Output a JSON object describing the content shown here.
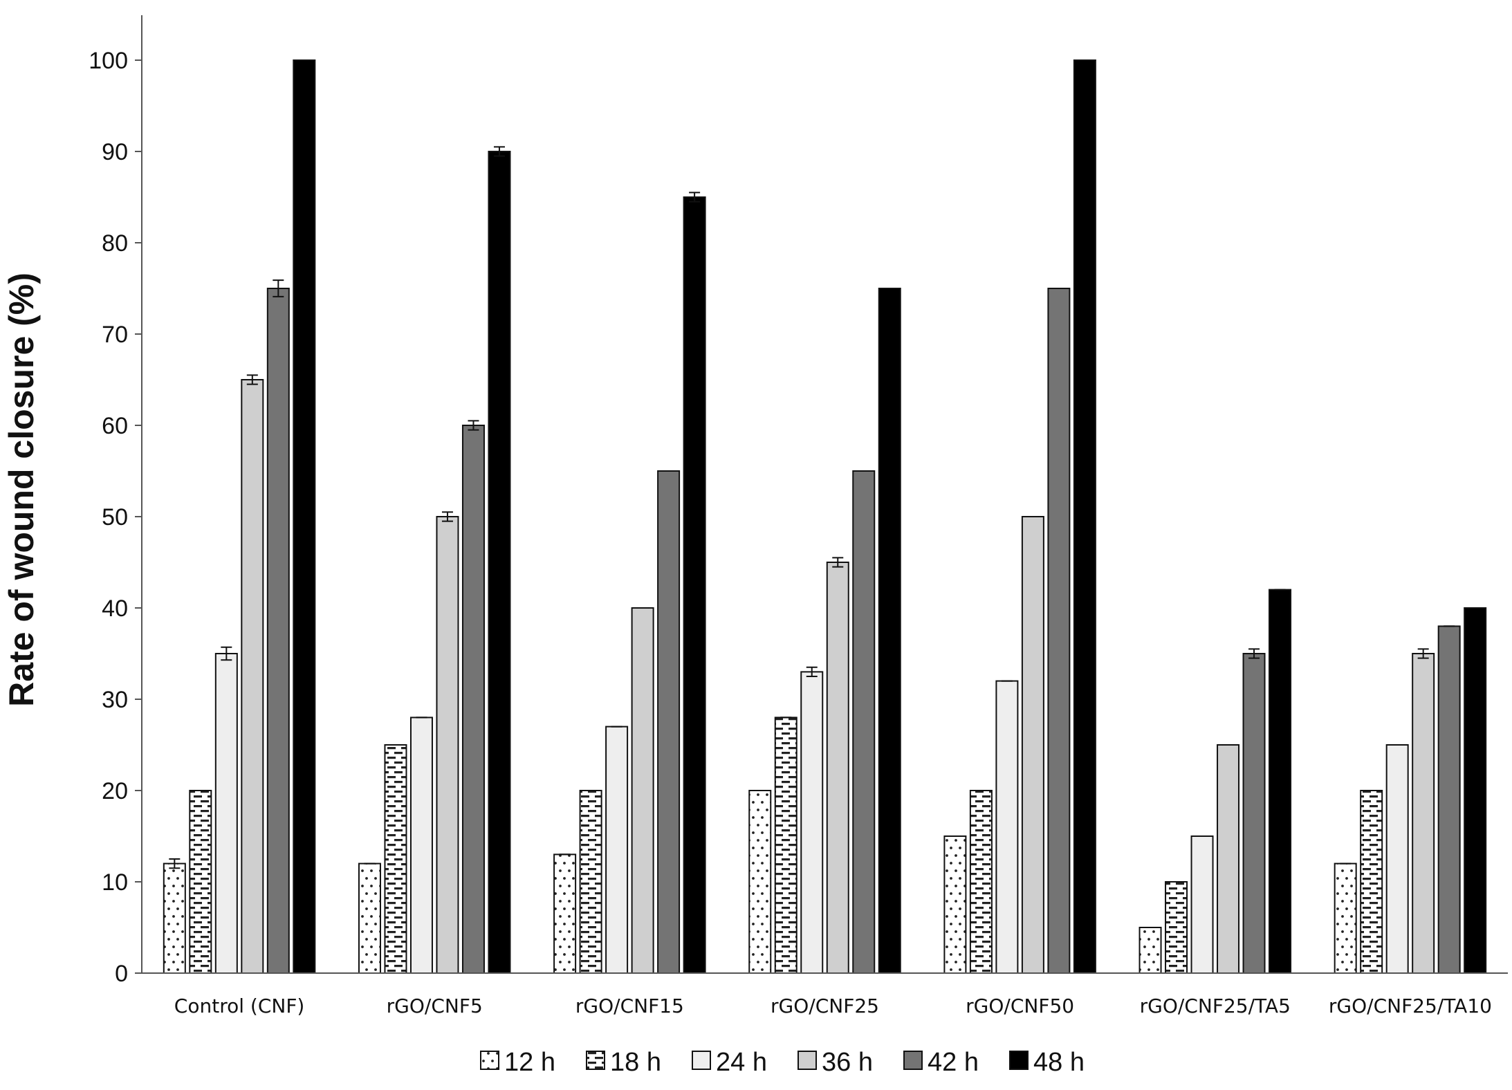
{
  "chart_data": {
    "type": "bar",
    "title": "",
    "xlabel": "",
    "ylabel": "Rate of wound closure (%)",
    "ylim": [
      0,
      100
    ],
    "yticks": [
      0,
      10,
      20,
      30,
      40,
      50,
      60,
      70,
      80,
      90,
      100
    ],
    "grid": false,
    "legend_position": "bottom",
    "categories": [
      "Control (CNF)",
      "rGO/CNF5",
      "rGO/CNF15",
      "rGO/CNF25",
      "rGO/CNF50",
      "rGO/CNF25/TA5",
      "rGO/CNF25/TA10"
    ],
    "series": [
      {
        "name": "12 h",
        "pattern": "dots",
        "color": "#ffffff",
        "values": [
          12,
          12,
          13,
          20,
          15,
          5,
          12
        ],
        "errors": [
          0.5,
          0,
          0,
          0,
          0,
          0,
          0
        ]
      },
      {
        "name": "18 h",
        "pattern": "dashes",
        "color": "#ffffff",
        "values": [
          20,
          25,
          20,
          28,
          20,
          10,
          20
        ],
        "errors": [
          0,
          0,
          0,
          0,
          0,
          0,
          0
        ]
      },
      {
        "name": "24 h",
        "pattern": "solid",
        "color": "#eeeeee",
        "values": [
          35,
          28,
          27,
          33,
          32,
          15,
          25
        ],
        "errors": [
          0.7,
          0,
          0,
          0.5,
          0,
          0,
          0
        ]
      },
      {
        "name": "36 h",
        "pattern": "solid",
        "color": "#cfcfcf",
        "values": [
          65,
          50,
          40,
          45,
          50,
          25,
          35
        ],
        "errors": [
          0.5,
          0.5,
          0,
          0.5,
          0,
          0,
          0.5
        ]
      },
      {
        "name": "42 h",
        "pattern": "solid",
        "color": "#747474",
        "values": [
          75,
          60,
          55,
          55,
          75,
          35,
          38
        ],
        "errors": [
          0.9,
          0.5,
          0,
          0,
          0,
          0.5,
          0
        ]
      },
      {
        "name": "48 h",
        "pattern": "solid",
        "color": "#000000",
        "values": [
          100,
          90,
          85,
          75,
          100,
          42,
          40
        ],
        "errors": [
          0,
          0.5,
          0.5,
          0,
          0,
          0,
          0
        ]
      }
    ]
  }
}
